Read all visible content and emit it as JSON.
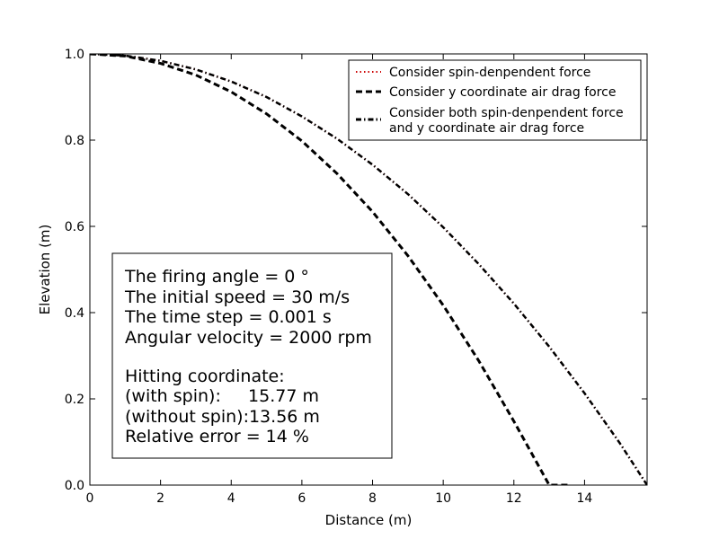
{
  "chart_data": {
    "type": "line",
    "title": "",
    "xlabel": "Distance (m)",
    "ylabel": "Elevation (m)",
    "xlim": [
      0,
      15.77
    ],
    "ylim": [
      0,
      1.0
    ],
    "xticks": [
      0,
      2,
      4,
      6,
      8,
      10,
      12,
      14
    ],
    "xtick_labels": [
      "0",
      "2",
      "4",
      "6",
      "8",
      "10",
      "12",
      "14"
    ],
    "yticks": [
      0.0,
      0.2,
      0.4,
      0.6,
      0.8,
      1.0
    ],
    "ytick_labels": [
      "0.0",
      "0.2",
      "0.4",
      "0.6",
      "0.8",
      "1.0"
    ],
    "grid": false,
    "legend_position": "top-right",
    "series": [
      {
        "name": "Consider spin-denpendent force",
        "color": "#cc0000",
        "style": "dotted",
        "x": [
          0,
          1,
          2,
          3,
          4,
          5,
          6,
          7,
          8,
          9,
          10,
          11,
          12,
          13,
          14,
          15,
          15.77
        ],
        "y": [
          1.0,
          0.996,
          0.984,
          0.964,
          0.936,
          0.9,
          0.855,
          0.803,
          0.743,
          0.675,
          0.598,
          0.513,
          0.421,
          0.321,
          0.213,
          0.097,
          0.0
        ]
      },
      {
        "name": "Consider y coordinate air drag force",
        "color": "#000000",
        "style": "dashed",
        "x": [
          0,
          1,
          2,
          3,
          4,
          5,
          6,
          7,
          8,
          9,
          10,
          11,
          12,
          13,
          13.56
        ],
        "y": [
          1.0,
          0.995,
          0.978,
          0.951,
          0.912,
          0.861,
          0.798,
          0.722,
          0.634,
          0.532,
          0.417,
          0.289,
          0.148,
          0.0,
          0.0
        ]
      },
      {
        "name": "Consider both spin-denpendent force and y coordinate air drag force",
        "name_lines": [
          "Consider both spin-denpendent force",
          "and y coordinate air drag force"
        ],
        "color": "#000000",
        "style": "dashdot",
        "x": [
          0,
          1,
          2,
          3,
          4,
          5,
          6,
          7,
          8,
          9,
          10,
          11,
          12,
          13,
          14,
          15,
          15.77
        ],
        "y": [
          1.0,
          0.996,
          0.984,
          0.964,
          0.936,
          0.9,
          0.855,
          0.803,
          0.743,
          0.675,
          0.598,
          0.513,
          0.421,
          0.321,
          0.213,
          0.097,
          0.0
        ]
      }
    ],
    "annotation": {
      "lines": [
        "The firing angle = 0 °",
        "The initial speed = 30 m/s",
        "The time step = 0.001 s",
        "Angular velocity = 2000 rpm",
        "",
        "Hitting coordinate:",
        "(with spin):     15.77 m",
        "(without spin):13.56 m",
        "Relative error = 14 %"
      ]
    }
  }
}
